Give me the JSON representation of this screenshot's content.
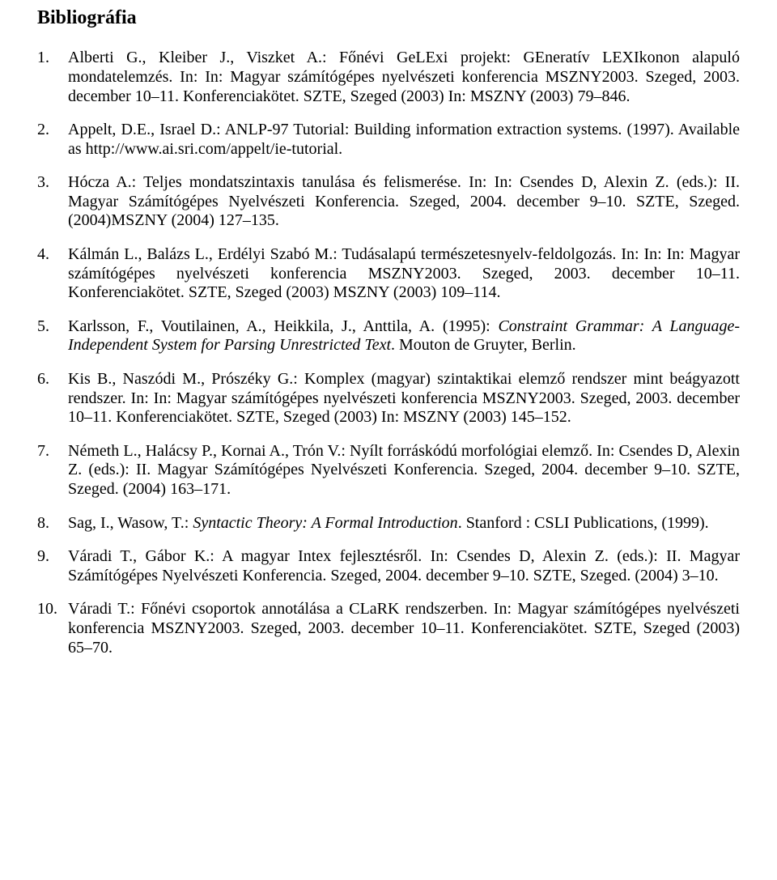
{
  "title": "Bibliográfia",
  "entries": [
    {
      "num": "1.",
      "segments": [
        {
          "t": "Alberti G., Kleiber J., Viszket A.: Főnévi GeLExi projekt: GEneratív LEXIkonon alapuló mondatelemzés. In: In: Magyar számítógépes nyelvészeti konferencia MSZNY2003. Szeged, 2003. december 10–11. Konferenciakötet. SZTE, Szeged (2003) In: MSZNY (2003) 79–846."
        }
      ]
    },
    {
      "num": "2.",
      "segments": [
        {
          "t": "Appelt, D.E., Israel D.: ANLP-97 Tutorial: Building information extraction systems. (1997). Available as http://www.ai.sri.com/appelt/ie-tutorial."
        }
      ]
    },
    {
      "num": "3.",
      "segments": [
        {
          "t": "Hócza A.: Teljes mondatszintaxis tanulása és felismerése. In: In: Csendes D, Alexin Z. (eds.): II. Magyar Számítógépes Nyelvészeti Konferencia. Szeged, 2004. december 9–10. SZTE, Szeged. (2004)MSZNY (2004) 127–135."
        }
      ]
    },
    {
      "num": "4.",
      "segments": [
        {
          "t": "Kálmán L., Balázs L., Erdélyi Szabó M.: Tudásalapú természetesnyelv-feldolgozás. In: In: In: Magyar számítógépes nyelvészeti konferencia MSZNY2003. Szeged, 2003. december 10–11. Konferenciakötet. SZTE, Szeged (2003) MSZNY (2003) 109–114."
        }
      ]
    },
    {
      "num": "5.",
      "segments": [
        {
          "t": "Karlsson, F., Voutilainen, A., Heikkila, J., Anttila, A. (1995): "
        },
        {
          "t": "Constraint Grammar: A Language-Independent System for Parsing Unrestricted Text",
          "italic": true
        },
        {
          "t": ". Mouton de Gruyter, Berlin."
        }
      ]
    },
    {
      "num": "6.",
      "segments": [
        {
          "t": "Kis B., Naszódi M., Prószéky G.: Komplex (magyar) szintaktikai elemző rendszer mint beágyazott rendszer. In: In: Magyar számítógépes nyelvészeti konferencia MSZNY2003. Szeged, 2003. december 10–11. Konferenciakötet. SZTE, Szeged (2003) In: MSZNY (2003) 145–152."
        }
      ]
    },
    {
      "num": "7.",
      "segments": [
        {
          "t": "Németh L., Halácsy P., Kornai A., Trón V.: Nyílt forráskódú morfológiai elemző. In: Csendes D, Alexin Z. (eds.): II. Magyar Számítógépes Nyelvészeti Konferencia. Szeged, 2004. december 9–10. SZTE, Szeged. (2004) 163–171."
        }
      ]
    },
    {
      "num": "8.",
      "segments": [
        {
          "t": "Sag, I., Wasow, T.: "
        },
        {
          "t": "Syntactic Theory: A Formal Introduction",
          "italic": true
        },
        {
          "t": ". Stanford : CSLI Publications, (1999)."
        }
      ]
    },
    {
      "num": "9.",
      "segments": [
        {
          "t": "Váradi T., Gábor K.: A magyar Intex fejlesztésről. In: Csendes D, Alexin Z. (eds.): II. Magyar Számítógépes Nyelvészeti Konferencia. Szeged, 2004. december 9–10. SZTE, Szeged. (2004) 3–10."
        }
      ]
    },
    {
      "num": "10.",
      "segments": [
        {
          "t": "Váradi T.: Főnévi csoportok annotálása a CLaRK rendszerben. In: Magyar számítógépes nyelvészeti konferencia MSZNY2003. Szeged, 2003. december 10–11. Konferenciakötet. SZTE, Szeged (2003) 65–70."
        }
      ]
    }
  ]
}
